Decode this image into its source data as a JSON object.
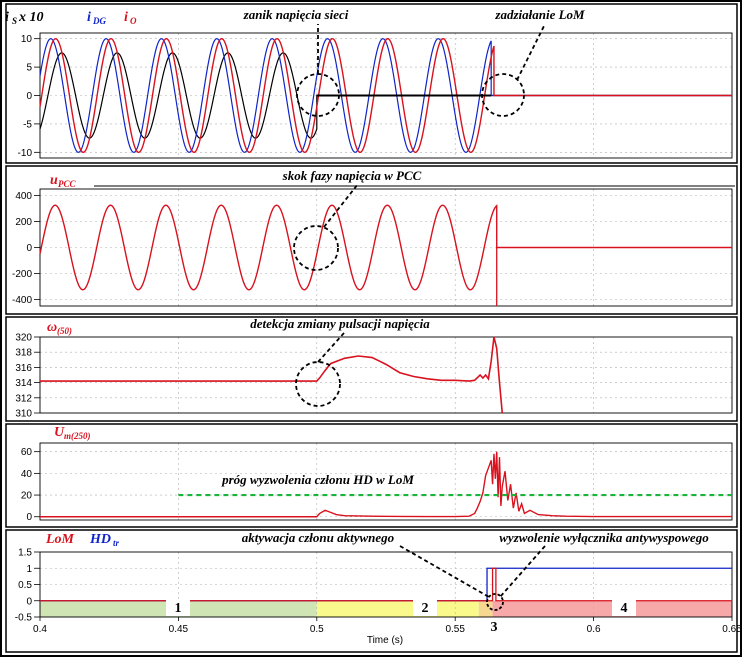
{
  "colors": {
    "red": "#d8121e",
    "blue": "#1024c8",
    "black": "#000000",
    "green_dash": "#19b43a",
    "zone1": "#cfe6b4",
    "zone2": "#fafa8c",
    "zone3": "#f7d890",
    "zone4": "#f7a8a8",
    "grid": "#b0b0b0"
  },
  "chart_data": [
    {
      "type": "line",
      "id": "currents",
      "ylim": [
        -11,
        11
      ],
      "yticks": [
        "10",
        "5",
        "0",
        "-5",
        "-10"
      ],
      "legend": [
        {
          "main": "i",
          "sub": "S",
          "suffix": " x 10",
          "color": "#000000"
        },
        {
          "main": "i",
          "sub": "DG",
          "suffix": "",
          "color": "#1024c8"
        },
        {
          "main": "i",
          "sub": "O",
          "suffix": "",
          "color": "#d8121e"
        }
      ],
      "series": [
        {
          "name": "iS x 10",
          "amplitude": 7.5,
          "until_x": 0.5,
          "after": 0
        },
        {
          "name": "iDG",
          "amplitude": 10,
          "until_x": 0.563,
          "after": 0
        },
        {
          "name": "iO",
          "amplitude": 10,
          "until_x": 0.564,
          "after": 0
        }
      ],
      "annotations": [
        "zanik napięcia sieci",
        "zadziałanie LoM"
      ]
    },
    {
      "type": "line",
      "id": "upcc",
      "ylim": [
        -450,
        450
      ],
      "yticks": [
        "400",
        "200",
        "0",
        "-200",
        "-400"
      ],
      "legend": [
        {
          "main": "u",
          "sub": "PCC",
          "suffix": "",
          "color": "#d8121e"
        }
      ],
      "series": [
        {
          "name": "uPCC",
          "amplitude": 325,
          "until_x": 0.565,
          "after": 0
        }
      ],
      "annotations": [
        "skok fazy napięcia w PCC"
      ]
    },
    {
      "type": "line",
      "id": "omega",
      "ylim": [
        310,
        320
      ],
      "yticks": [
        "320",
        "318",
        "316",
        "314",
        "312",
        "310"
      ],
      "legend": [
        {
          "main": "ω",
          "sub": "(50)",
          "suffix": "",
          "color": "#d8121e"
        }
      ],
      "series": [
        {
          "name": "ω(50)",
          "x": [
            0.4,
            0.5,
            0.501,
            0.503,
            0.505,
            0.51,
            0.515,
            0.52,
            0.525,
            0.53,
            0.535,
            0.54,
            0.545,
            0.55,
            0.555,
            0.557,
            0.559,
            0.56,
            0.561,
            0.562,
            0.563,
            0.564,
            0.565,
            0.566,
            0.567
          ],
          "y": [
            314.2,
            314.2,
            314.6,
            315.6,
            316.5,
            317.2,
            317.5,
            317.3,
            316.4,
            315.3,
            314.8,
            314.5,
            314.3,
            314.3,
            314.2,
            314.3,
            315.0,
            314.6,
            315.0,
            314.5,
            316.8,
            320.0,
            318.5,
            314.0,
            310.0
          ]
        }
      ],
      "annotations": [
        "detekcja zmiany pulsacji napięcia"
      ]
    },
    {
      "type": "line",
      "id": "um",
      "ylim": [
        -3,
        68
      ],
      "yticks": [
        "60",
        "40",
        "20",
        "0"
      ],
      "legend": [
        {
          "main": "U",
          "sub": "m(250)",
          "suffix": "",
          "color": "#d8121e"
        }
      ],
      "threshold": {
        "value": 20,
        "from_x": 0.45,
        "label": "próg wyzwolenia członu HD w LoM"
      },
      "series": [
        {
          "name": "Um(250)",
          "x": [
            0.4,
            0.5,
            0.501,
            0.503,
            0.505,
            0.507,
            0.51,
            0.52,
            0.53,
            0.54,
            0.55,
            0.555,
            0.557,
            0.558,
            0.559,
            0.56,
            0.561,
            0.562,
            0.563,
            0.5635,
            0.564,
            0.5645,
            0.565,
            0.5655,
            0.566,
            0.5665,
            0.567,
            0.568,
            0.569,
            0.57,
            0.571,
            0.572,
            0.573,
            0.574,
            0.575,
            0.577,
            0.58,
            0.585,
            0.59,
            0.6,
            0.65
          ],
          "y": [
            0,
            0,
            3,
            6,
            4,
            2,
            1,
            0.5,
            0.3,
            0.2,
            0.2,
            0.5,
            3,
            8,
            14,
            22,
            38,
            45,
            52,
            30,
            58,
            35,
            60,
            18,
            55,
            10,
            28,
            42,
            15,
            30,
            8,
            22,
            5,
            12,
            3,
            6,
            2,
            1,
            0.5,
            0.2,
            0.2
          ]
        }
      ]
    },
    {
      "type": "line",
      "id": "lom",
      "ylim": [
        -0.5,
        1.5
      ],
      "yticks": [
        "1.5",
        "1",
        "0.5",
        "0",
        "-0.5"
      ],
      "legend": [
        {
          "main": "LoM",
          "sub": "",
          "suffix": "",
          "color": "#d8121e"
        },
        {
          "main": "HD",
          "sub": "tr",
          "suffix": "",
          "color": "#1024c8"
        }
      ],
      "series": [
        {
          "name": "LoM",
          "step_x": 0.5635,
          "low": 0,
          "high": 1
        },
        {
          "name": "HDtr",
          "step_x": 0.5615,
          "low": 0,
          "high": 1
        }
      ],
      "annotations": [
        "aktywacja członu aktywnego",
        "wyzwolenie wyłącznika antywyspowego"
      ],
      "zones": [
        {
          "label": "1",
          "from": 0.4,
          "to": 0.5
        },
        {
          "label": "2",
          "from": 0.5,
          "to": 0.5585
        },
        {
          "label": "3",
          "from": 0.5585,
          "to": 0.5635
        },
        {
          "label": "4",
          "from": 0.5635,
          "to": 0.65
        }
      ]
    }
  ],
  "x_axis": {
    "label": "Time (s)",
    "ticks": [
      "0.4",
      "0.45",
      "0.5",
      "0.55",
      "0.6",
      "0.65"
    ],
    "values": [
      0.4,
      0.45,
      0.5,
      0.55,
      0.6,
      0.65
    ]
  }
}
